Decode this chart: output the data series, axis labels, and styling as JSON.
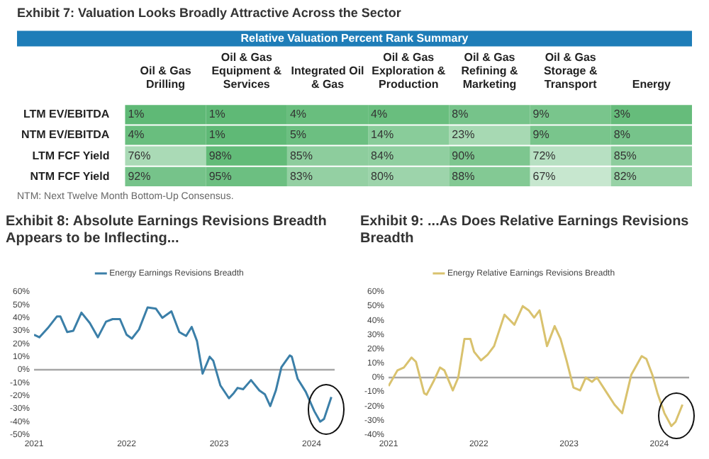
{
  "chart_data": [
    {
      "type": "heatmap",
      "title": "Exhibit 7: Valuation Looks Broadly Attractive Across the Sector",
      "subtitle": "Relative Valuation Percent Rank Summary",
      "categories": [
        "Oil & Gas Drilling",
        "Oil & Gas Equipment & Services",
        "Integrated Oil & Gas",
        "Oil & Gas Exploration & Production",
        "Oil & Gas Refining & Marketing",
        "Oil & Gas Storage & Transport",
        "Energy"
      ],
      "y_categories": [
        "LTM EV/EBITDA",
        "NTM EV/EBITDA",
        "LTM FCF Yield",
        "NTM FCF Yield"
      ],
      "cells": [
        [
          1,
          1,
          4,
          4,
          8,
          9,
          3
        ],
        [
          4,
          1,
          5,
          14,
          23,
          9,
          8
        ],
        [
          76,
          98,
          85,
          84,
          90,
          72,
          85
        ],
        [
          92,
          95,
          83,
          80,
          88,
          67,
          82
        ]
      ],
      "cell_labels": [
        [
          "1%",
          "1%",
          "4%",
          "4%",
          "8%",
          "9%",
          "3%"
        ],
        [
          "4%",
          "1%",
          "5%",
          "14%",
          "23%",
          "9%",
          "8%"
        ],
        [
          "76%",
          "98%",
          "85%",
          "84%",
          "90%",
          "72%",
          "85%"
        ],
        [
          "92%",
          "95%",
          "83%",
          "80%",
          "88%",
          "67%",
          "82%"
        ]
      ],
      "annotations": [
        "NTM: Next Twelve Month Bottom-Up Consensus."
      ]
    },
    {
      "type": "line",
      "title": "Exhibit 8: Absolute Earnings Revisions Breadth Appears to be Inflecting...",
      "legend": "top",
      "series": [
        {
          "name": "Energy Earnings Revisions Breadth",
          "color": "#3b7fa8",
          "x": [
            "2021-01-01",
            "2021-01-22",
            "2021-02-24",
            "2021-04-01",
            "2021-04-15",
            "2021-05-12",
            "2021-06-05",
            "2021-07-07",
            "2021-08-09",
            "2021-09-10",
            "2021-10-12",
            "2021-11-07",
            "2021-12-06",
            "2022-01-01",
            "2022-01-22",
            "2022-02-19",
            "2022-03-25",
            "2022-04-27",
            "2022-05-22",
            "2022-06-27",
            "2022-07-28",
            "2022-08-24",
            "2022-09-15",
            "2022-10-06",
            "2022-10-28",
            "2022-11-25",
            "2022-12-09",
            "2023-01-06",
            "2023-02-09",
            "2023-02-28",
            "2023-03-15",
            "2023-04-06",
            "2023-05-07",
            "2023-06-09",
            "2023-07-01",
            "2023-07-22",
            "2023-08-13",
            "2023-09-04",
            "2023-10-07",
            "2023-10-15",
            "2023-11-07",
            "2023-12-09",
            "2024-01-12",
            "2024-02-04",
            "2024-02-19",
            "2024-03-19"
          ],
          "values": [
            27,
            25,
            32,
            41,
            41,
            29,
            30,
            44,
            36,
            25,
            37,
            39,
            39,
            27,
            24,
            31,
            48,
            47,
            40,
            45,
            29,
            26,
            33,
            22,
            -3,
            10,
            7,
            -12,
            -22,
            -18,
            -14,
            -15,
            -8,
            -16,
            -19,
            -28,
            -16,
            2,
            11,
            10,
            -7,
            -17,
            -32,
            -40,
            -38,
            -21
          ]
        }
      ],
      "xlim": [
        "2021-01-01",
        "2024-04-01"
      ],
      "xticks": [
        "2021",
        "2022",
        "2023",
        "2024"
      ],
      "ylim": [
        -50,
        60
      ],
      "yticks": [
        {
          "value": -50,
          "label": "-50%"
        },
        {
          "value": -40,
          "label": "-40%"
        },
        {
          "value": -30,
          "label": "-30%"
        },
        {
          "value": -20,
          "label": "-20%"
        },
        {
          "value": -10,
          "label": "-10%"
        },
        {
          "value": 0,
          "label": "0%"
        },
        {
          "value": 10,
          "label": "10%"
        },
        {
          "value": 20,
          "label": "20%"
        },
        {
          "value": 30,
          "label": "30%"
        },
        {
          "value": 40,
          "label": "40%"
        },
        {
          "value": 50,
          "label": "50%"
        },
        {
          "value": 60,
          "label": "60%"
        }
      ],
      "ref_lines": [
        {
          "axis": "y",
          "value": 0,
          "color": "#a6a6a6"
        }
      ]
    },
    {
      "type": "line",
      "title": "Exhibit 9: ...As Does Relative Earnings Revisions Breadth",
      "legend": "top",
      "series": [
        {
          "name": "Energy Relative Earnings Revisions Breadth",
          "color": "#d9c26e",
          "x": [
            "2021-01-01",
            "2021-02-06",
            "2021-03-04",
            "2021-04-04",
            "2021-04-22",
            "2021-05-25",
            "2021-06-04",
            "2021-07-04",
            "2021-07-28",
            "2021-08-15",
            "2021-09-18",
            "2021-10-10",
            "2021-11-04",
            "2021-11-28",
            "2021-12-13",
            "2022-01-10",
            "2022-02-06",
            "2022-03-04",
            "2022-04-15",
            "2022-05-25",
            "2022-06-28",
            "2022-07-22",
            "2022-08-13",
            "2022-09-04",
            "2022-10-04",
            "2022-11-04",
            "2022-11-28",
            "2022-12-22",
            "2023-01-19",
            "2023-02-15",
            "2023-03-10",
            "2023-04-04",
            "2023-04-24",
            "2023-06-04",
            "2023-07-04",
            "2023-08-04",
            "2023-09-10",
            "2023-10-22",
            "2023-11-10",
            "2023-12-04",
            "2023-12-25",
            "2024-01-22",
            "2024-02-19",
            "2024-03-07",
            "2024-04-04"
          ],
          "values": [
            -6,
            5,
            7,
            14,
            11,
            -11,
            -12,
            -2,
            7,
            5,
            -9,
            0,
            27,
            27,
            18,
            12,
            16,
            22,
            44,
            37,
            50,
            47,
            42,
            47,
            22,
            36,
            27,
            12,
            -7,
            -9,
            0,
            -3,
            0,
            -11,
            -19,
            -25,
            2,
            15,
            13,
            2,
            -11,
            -25,
            -34,
            -31,
            -19
          ]
        }
      ],
      "xlim": [
        "2021-01-01",
        "2024-05-01"
      ],
      "xticks": [
        "2021",
        "2022",
        "2023",
        "2024"
      ],
      "ylim": [
        -40,
        60
      ],
      "yticks": [
        {
          "value": -40,
          "label": "-40%"
        },
        {
          "value": -30,
          "label": "-30%"
        },
        {
          "value": -20,
          "label": "-20%"
        },
        {
          "value": -10,
          "label": "-10%"
        },
        {
          "value": 0,
          "label": "0%"
        },
        {
          "value": 10,
          "label": "10%"
        },
        {
          "value": 20,
          "label": "20%"
        },
        {
          "value": 30,
          "label": "30%"
        },
        {
          "value": 40,
          "label": "40%"
        },
        {
          "value": 50,
          "label": "50%"
        },
        {
          "value": 60,
          "label": "60%"
        }
      ],
      "ref_lines": [
        {
          "axis": "y",
          "value": 0,
          "color": "#a6a6a6"
        }
      ]
    }
  ]
}
